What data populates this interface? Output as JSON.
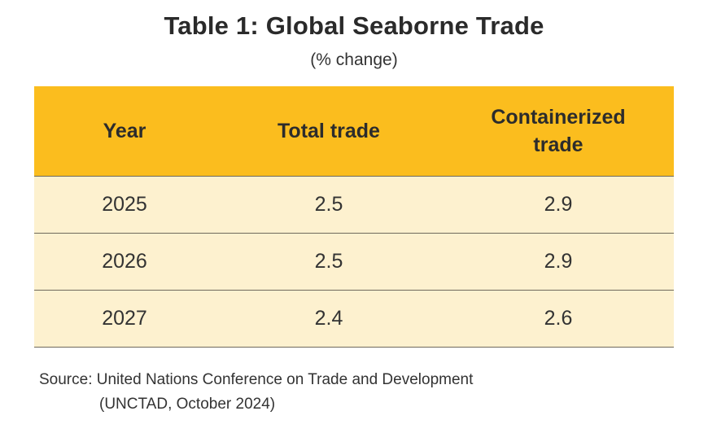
{
  "chart_data": {
    "type": "table",
    "title": "Table 1: Global Seaborne Trade",
    "subtitle": "(% change)",
    "columns": [
      "Year",
      "Total trade",
      "Containerized trade"
    ],
    "rows": [
      {
        "year": "2025",
        "total_trade": "2.5",
        "containerized_trade": "2.9"
      },
      {
        "year": "2026",
        "total_trade": "2.5",
        "containerized_trade": "2.9"
      },
      {
        "year": "2027",
        "total_trade": "2.4",
        "containerized_trade": "2.6"
      }
    ],
    "source_line1": "Source: United Nations Conference on Trade and Development",
    "source_line2": "(UNCTAD, October 2024)"
  },
  "colors": {
    "header_background": "#fbbd1e",
    "row_background": "#fdf1cf",
    "rule": "#6f6a5c"
  }
}
